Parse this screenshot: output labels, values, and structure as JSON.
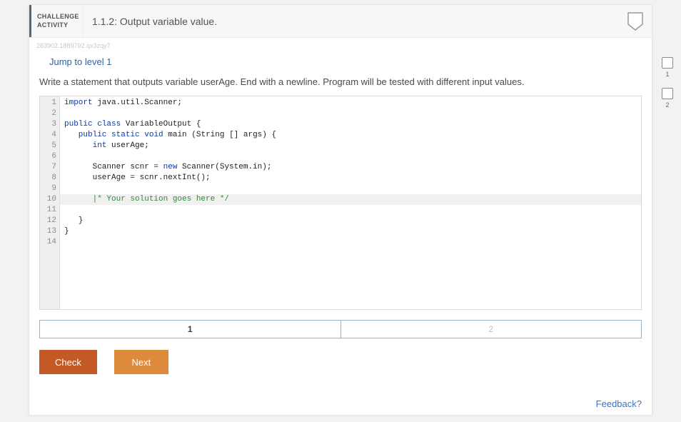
{
  "header": {
    "badge_line1": "CHALLENGE",
    "badge_line2": "ACTIVITY",
    "title": "1.1.2: Output variable value."
  },
  "meta": {
    "code": "283902.1889792.qx3zqy7"
  },
  "jump_link": "Jump to level 1",
  "prompt": "Write a statement that outputs variable userAge. End with a newline. Program will be tested with different input values.",
  "editor": {
    "line_count": 14,
    "highlight_line": 10,
    "lines": {
      "l1_a": "import",
      "l1_b": " java.util.Scanner;",
      "l3_a": "public",
      "l3_b": " class",
      "l3_c": " VariableOutput {",
      "l4_a": "   public",
      "l4_b": " static",
      "l4_c": " void",
      "l4_d": " main (String [] args) {",
      "l5_a": "      int",
      "l5_b": " userAge;",
      "l7_a": "      Scanner scnr = ",
      "l7_b": "new",
      "l7_c": " Scanner(System.in);",
      "l8": "      userAge = scnr.nextInt();",
      "l10": "      |* Your solution goes here */",
      "l12": "   }",
      "l13": "}"
    }
  },
  "pager": {
    "items": [
      "1",
      "2"
    ],
    "active_index": 0
  },
  "buttons": {
    "check": "Check",
    "next": "Next"
  },
  "feedback": "Feedback?",
  "side_checks": {
    "items": [
      "1",
      "2"
    ]
  },
  "colors": {
    "accent_header_border": "#4f6b82",
    "btn_primary": "#c45926",
    "btn_secondary": "#dd8a3d",
    "link": "#3a74c7",
    "jump": "#36609e",
    "keyword": "#0b39a4",
    "type": "#7d7d3a",
    "comment": "#2f8a3b"
  }
}
